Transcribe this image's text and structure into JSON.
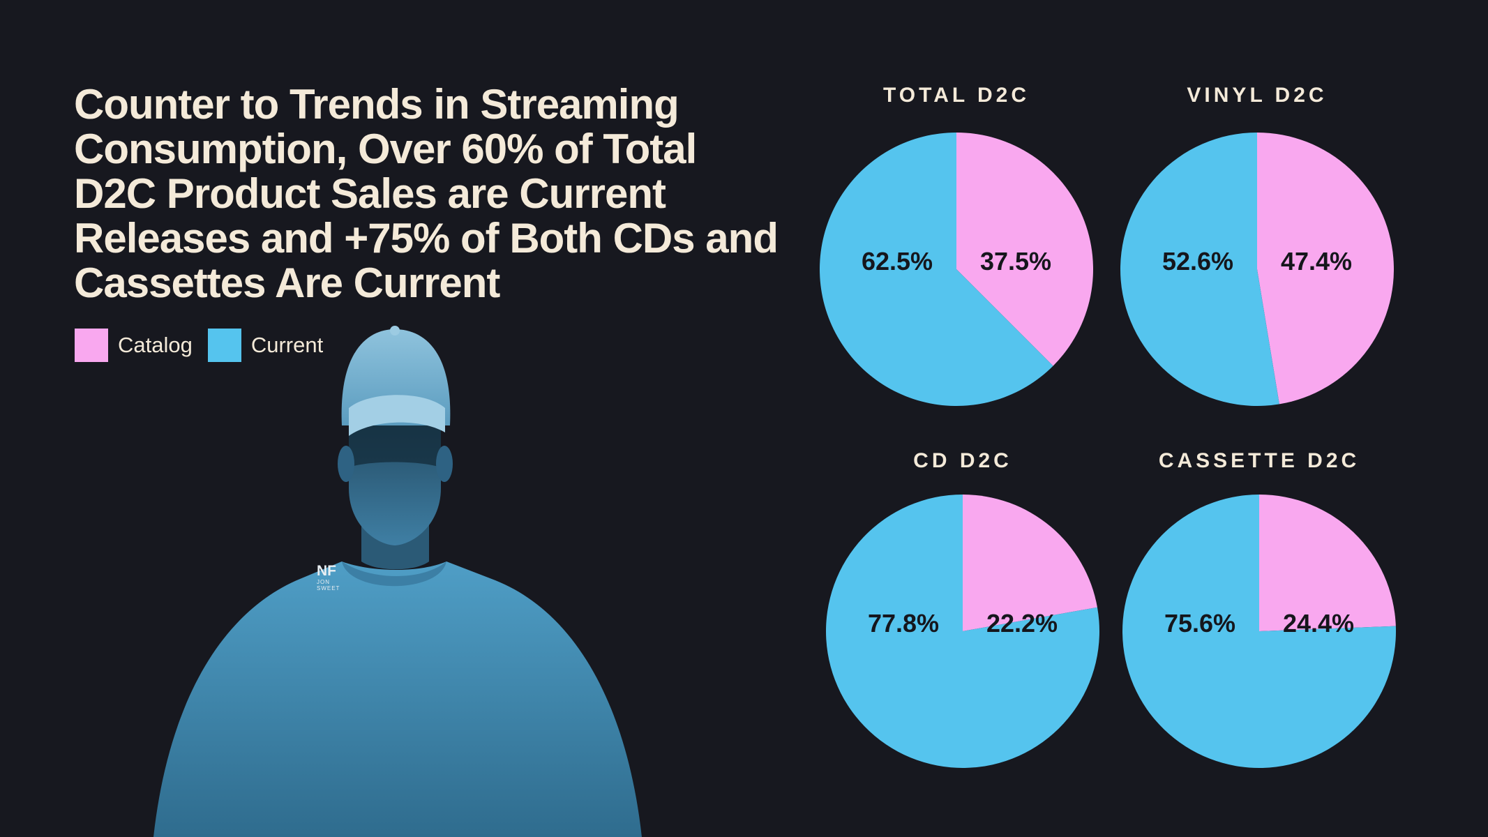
{
  "headline": "Counter to Trends in Streaming Consumption, Over 60% of Total D2C Product Sales are Current Releases and +75% of Both CDs and Cassettes Are Current",
  "legend": [
    {
      "label": "Catalog",
      "color": "#f9a8ef"
    },
    {
      "label": "Current",
      "color": "#55c4ee"
    }
  ],
  "logo": {
    "main": "NF",
    "sub1": "JON",
    "sub2": "SWEET"
  },
  "colors": {
    "background": "#17181f",
    "text": "#f4ead9",
    "catalog": "#f9a8ef",
    "current": "#55c4ee"
  },
  "chart_data": [
    {
      "type": "pie",
      "title": "TOTAL D2C",
      "categories": [
        "Catalog",
        "Current"
      ],
      "values": [
        37.5,
        62.5
      ],
      "labels": [
        "37.5%",
        "62.5%"
      ]
    },
    {
      "type": "pie",
      "title": "VINYL D2C",
      "categories": [
        "Catalog",
        "Current"
      ],
      "values": [
        47.4,
        52.6
      ],
      "labels": [
        "47.4%",
        "52.6%"
      ]
    },
    {
      "type": "pie",
      "title": "CD D2C",
      "categories": [
        "Catalog",
        "Current"
      ],
      "values": [
        22.2,
        77.8
      ],
      "labels": [
        "22.2%",
        "77.8%"
      ]
    },
    {
      "type": "pie",
      "title": "CASSETTE D2C",
      "categories": [
        "Catalog",
        "Current"
      ],
      "values": [
        24.4,
        75.6
      ],
      "labels": [
        "24.4%",
        "75.6%"
      ]
    }
  ]
}
